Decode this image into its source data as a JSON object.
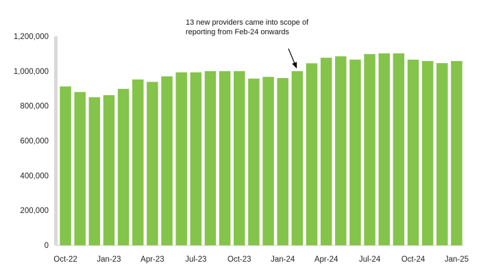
{
  "chart_data": {
    "type": "bar",
    "title": "",
    "xlabel": "",
    "ylabel": "",
    "ylim": [
      0,
      1200000
    ],
    "grid": false,
    "legend": "none",
    "bar_color": "#84C44A",
    "axis_color": "#D9D9D9",
    "yticks": [
      0,
      200000,
      400000,
      600000,
      800000,
      1000000,
      1200000
    ],
    "ytick_labels": [
      "0",
      "200,000",
      "400,000",
      "600,000",
      "800,000",
      "1,000,000",
      "1,200,000"
    ],
    "categories": [
      "Oct-22",
      "Nov-22",
      "Dec-22",
      "Jan-23",
      "Feb-23",
      "Mar-23",
      "Apr-23",
      "May-23",
      "Jun-23",
      "Jul-23",
      "Aug-23",
      "Sep-23",
      "Oct-23",
      "Nov-23",
      "Dec-23",
      "Jan-24",
      "Feb-24",
      "Mar-24",
      "Apr-24",
      "May-24",
      "Jun-24",
      "Jul-24",
      "Aug-24",
      "Sep-24",
      "Oct-24",
      "Nov-24",
      "Dec-24",
      "Jan-25"
    ],
    "x_tick_labels": [
      "Oct-22",
      "",
      "",
      "Jan-23",
      "",
      "",
      "Apr-23",
      "",
      "",
      "Jul-23",
      "",
      "",
      "Oct-23",
      "",
      "",
      "Jan-24",
      "",
      "",
      "Apr-24",
      "",
      "",
      "Jul-24",
      "",
      "",
      "Oct-24",
      "",
      "",
      "Jan-25"
    ],
    "values": [
      912000,
      880000,
      850000,
      862000,
      898000,
      952000,
      938000,
      970000,
      993000,
      993000,
      1000000,
      1000000,
      1000000,
      957000,
      967000,
      960000,
      1000000,
      1045000,
      1077000,
      1085000,
      1066000,
      1098000,
      1102000,
      1102000,
      1066000,
      1058000,
      1046000,
      1058000
    ],
    "annotation": {
      "lines": [
        "13 new providers came into scope of",
        "reporting from Feb-24 onwards"
      ],
      "points_to": "Feb-24"
    }
  }
}
